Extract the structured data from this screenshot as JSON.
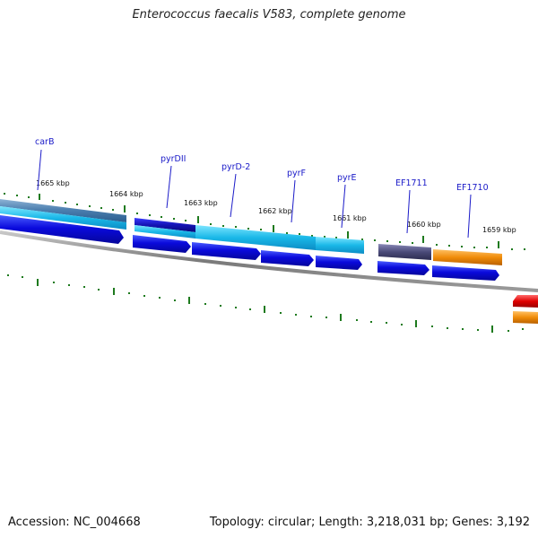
{
  "title": "Enterococcus faecalis V583, complete genome",
  "footer": {
    "accession": "Accession: NC_004668",
    "summary": "Topology: circular; Length: 3,218,031 bp; Genes: 3,192"
  },
  "scale_labels": [
    "1665 kbp",
    "1664 kbp",
    "1663 kbp",
    "1662 kbp",
    "1661 kbp",
    "1660 kbp",
    "1659 kbp"
  ],
  "gene_labels": [
    "carB",
    "pyrDII",
    "pyrD-2",
    "pyrF",
    "pyrE",
    "EF1711",
    "EF1710"
  ],
  "colors": {
    "cds": "#0a0adc",
    "cds_light": "#1ab8e8",
    "cds_dark_blue": "#1414b4",
    "cds_slate": "#4a4a78",
    "cds_orange": "#f08c0a",
    "cds_red": "#e00000",
    "backbone": "#8a8a8a",
    "ticks": "#1e7a1e",
    "label": "#1a1ac8"
  }
}
